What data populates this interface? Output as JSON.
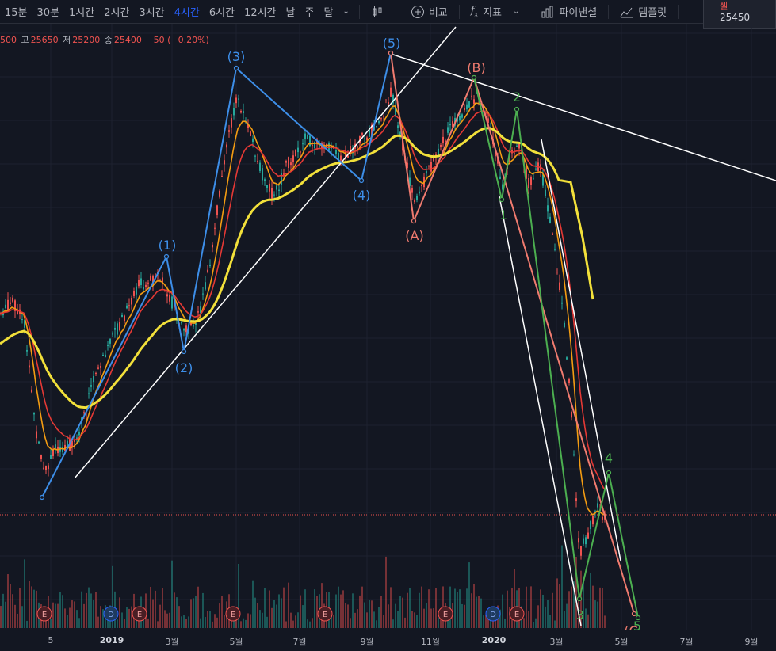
{
  "toolbar": {
    "timeframes": [
      "15분",
      "30분",
      "1시간",
      "2시간",
      "3시간",
      "4시간",
      "6시간",
      "12시간",
      "날",
      "주",
      "달"
    ],
    "active_timeframe": "4시간",
    "compare_label": "비교",
    "indicators_label": "지표",
    "financials_label": "파이낸셜",
    "templates_label": "템플릿"
  },
  "sell": {
    "label": "셀",
    "price": "25450"
  },
  "ohlc": {
    "open_value": "500",
    "high_label": "고",
    "high_value": "25650",
    "low_label": "저",
    "low_value": "25200",
    "close_label": "종",
    "close_value": "25400",
    "change": "−50 (−0.20%)"
  },
  "colors": {
    "background": "#131722",
    "blue_wave": "#3d8ee8",
    "green_wave": "#4caf50",
    "red_wave": "#f07b6f",
    "sma_yellow": "#f2e03a",
    "ema_orange": "#f39c12",
    "ema_red": "#e53935",
    "up": "#26a69a",
    "down": "#ef5350"
  },
  "chart_data": {
    "type": "line",
    "x_ticks": [
      "5",
      "2019",
      "3월",
      "5월",
      "7월",
      "9월",
      "11월",
      "2020",
      "3월",
      "5월",
      "7월",
      "9월"
    ],
    "x_ticks_bold": [
      "2019",
      "2020"
    ],
    "wave_labels": {
      "blue": [
        "(1)",
        "(2)",
        "(3)",
        "(4)",
        "(5)"
      ],
      "red": [
        "(A)",
        "(B)"
      ],
      "green": [
        "1",
        "2",
        "3",
        "4",
        "5"
      ],
      "red_extra": "(C"
    },
    "events": [
      "E",
      "D",
      "E",
      "E",
      "E",
      "E",
      "D",
      "E"
    ]
  }
}
